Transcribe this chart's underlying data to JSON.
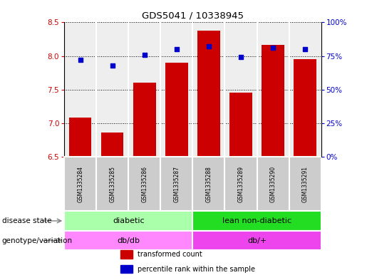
{
  "title": "GDS5041 / 10338945",
  "samples": [
    "GSM1335284",
    "GSM1335285",
    "GSM1335286",
    "GSM1335287",
    "GSM1335288",
    "GSM1335289",
    "GSM1335290",
    "GSM1335291"
  ],
  "transformed_count": [
    7.08,
    6.86,
    7.6,
    7.9,
    8.38,
    7.46,
    8.17,
    7.95
  ],
  "percentile_rank": [
    72,
    68,
    76,
    80,
    82,
    74,
    81,
    80
  ],
  "ylim_left": [
    6.5,
    8.5
  ],
  "ylim_right": [
    0,
    100
  ],
  "yticks_left": [
    6.5,
    7.0,
    7.5,
    8.0,
    8.5
  ],
  "yticks_right": [
    0,
    25,
    50,
    75,
    100
  ],
  "bar_color": "#cc0000",
  "dot_color": "#0000cc",
  "bar_bottom": 6.5,
  "disease_state_groups": [
    {
      "label": "diabetic",
      "start": 0,
      "end": 4,
      "color": "#aaffaa"
    },
    {
      "label": "lean non-diabetic",
      "start": 4,
      "end": 8,
      "color": "#22dd22"
    }
  ],
  "genotype_groups": [
    {
      "label": "db/db",
      "start": 0,
      "end": 4,
      "color": "#ff88ff"
    },
    {
      "label": "db/+",
      "start": 4,
      "end": 8,
      "color": "#ee44ee"
    }
  ],
  "legend_items": [
    {
      "label": "transformed count",
      "color": "#cc0000"
    },
    {
      "label": "percentile rank within the sample",
      "color": "#0000cc"
    }
  ],
  "sample_bg_color": "#cccccc",
  "plot_bg_color": "#eeeeee",
  "left_tick_color": "#cc0000",
  "right_tick_color": "#0000cc"
}
